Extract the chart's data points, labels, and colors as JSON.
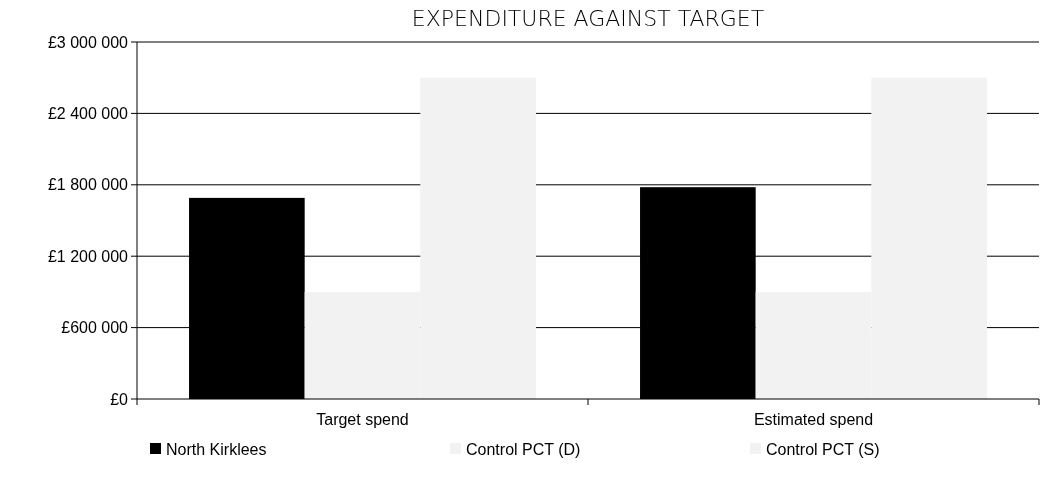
{
  "chart_data": {
    "type": "bar",
    "title": "EXPENDITURE AGAINST TARGET",
    "categories": [
      "Target spend",
      "Estimated spend"
    ],
    "series": [
      {
        "name": "North Kirklees",
        "color": "#000000",
        "values": [
          1690000,
          1780000
        ]
      },
      {
        "name": "Control PCT (D)",
        "color": "#f2f2f2",
        "values": [
          900000,
          900000
        ]
      },
      {
        "name": "Control PCT (S)",
        "color": "#f2f2f2",
        "values": [
          2700000,
          2700000
        ]
      }
    ],
    "ylim": [
      0,
      3000000
    ],
    "yticks": [
      {
        "value": 0,
        "label": "£0"
      },
      {
        "value": 600000,
        "label": "£600 000"
      },
      {
        "value": 1200000,
        "label": "£1 200 000"
      },
      {
        "value": 1800000,
        "label": "£1 800 000"
      },
      {
        "value": 2400000,
        "label": "£2 400 000"
      },
      {
        "value": 3000000,
        "label": "£3 000 000"
      }
    ],
    "grid": "y",
    "legend": "bottom"
  }
}
